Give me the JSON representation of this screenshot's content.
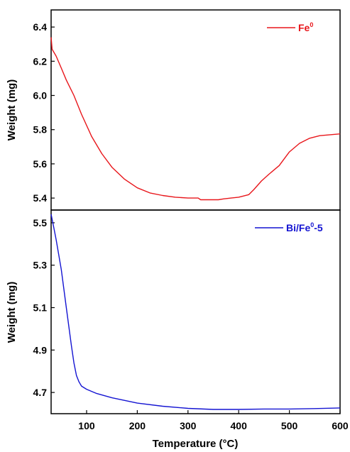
{
  "chart_data": [
    {
      "type": "line",
      "xlabel": "Temperature (°C)",
      "ylabel": "Weight (mg)",
      "xlim": [
        30,
        600
      ],
      "ylim": [
        5.33,
        6.5
      ],
      "yticks": [
        "5.4",
        "5.6",
        "5.8",
        "6.0",
        "6.2",
        "6.4"
      ],
      "legend_position": "top-right",
      "series": [
        {
          "name": "Fe",
          "name_sup": "0",
          "color": "#e8161b",
          "x": [
            30,
            32,
            40,
            50,
            60,
            75,
            90,
            110,
            130,
            150,
            175,
            200,
            225,
            250,
            275,
            300,
            320,
            325,
            340,
            360,
            370,
            385,
            400,
            420,
            430,
            445,
            460,
            480,
            500,
            520,
            540,
            560,
            580,
            600
          ],
          "y": [
            6.34,
            6.27,
            6.23,
            6.16,
            6.09,
            6.0,
            5.89,
            5.76,
            5.66,
            5.58,
            5.51,
            5.46,
            5.43,
            5.415,
            5.405,
            5.4,
            5.4,
            5.39,
            5.39,
            5.39,
            5.395,
            5.4,
            5.405,
            5.42,
            5.45,
            5.5,
            5.54,
            5.59,
            5.67,
            5.72,
            5.75,
            5.765,
            5.77,
            5.775
          ]
        }
      ]
    },
    {
      "type": "line",
      "xlabel": "Temperature (°C)",
      "ylabel": "Weight (mg)",
      "xlim": [
        30,
        600
      ],
      "ylim": [
        4.6,
        5.56
      ],
      "xticks": [
        "100",
        "200",
        "300",
        "400",
        "500",
        "600"
      ],
      "yticks": [
        "4.7",
        "4.9",
        "5.1",
        "5.3",
        "5.5"
      ],
      "legend_position": "top-right",
      "series": [
        {
          "name": "Bi/Fe",
          "name_sup": "0",
          "name_suffix": "-5",
          "color": "#1414d2",
          "x": [
            30,
            35,
            40,
            50,
            60,
            70,
            75,
            80,
            85,
            90,
            100,
            120,
            150,
            200,
            250,
            300,
            350,
            400,
            450,
            500,
            550,
            600
          ],
          "y": [
            5.54,
            5.48,
            5.42,
            5.28,
            5.1,
            4.92,
            4.84,
            4.78,
            4.75,
            4.73,
            4.715,
            4.695,
            4.675,
            4.65,
            4.635,
            4.625,
            4.62,
            4.62,
            4.622,
            4.622,
            4.624,
            4.627
          ]
        }
      ]
    }
  ]
}
